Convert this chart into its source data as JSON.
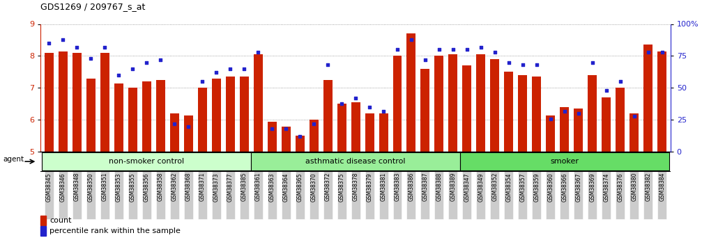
{
  "title": "GDS1269 / 209767_s_at",
  "categories": [
    "GSM38345",
    "GSM38346",
    "GSM38348",
    "GSM38350",
    "GSM38351",
    "GSM38353",
    "GSM38355",
    "GSM38356",
    "GSM38358",
    "GSM38362",
    "GSM38368",
    "GSM38371",
    "GSM38373",
    "GSM38377",
    "GSM38385",
    "GSM38361",
    "GSM38363",
    "GSM38364",
    "GSM38365",
    "GSM38370",
    "GSM38372",
    "GSM38375",
    "GSM38378",
    "GSM38379",
    "GSM38381",
    "GSM38383",
    "GSM38386",
    "GSM38387",
    "GSM38388",
    "GSM38389",
    "GSM38347",
    "GSM38349",
    "GSM38352",
    "GSM38354",
    "GSM38357",
    "GSM38359",
    "GSM38360",
    "GSM38366",
    "GSM38367",
    "GSM38369",
    "GSM38374",
    "GSM38376",
    "GSM38380",
    "GSM38382",
    "GSM38384"
  ],
  "bar_values": [
    8.1,
    8.15,
    8.1,
    7.3,
    8.1,
    7.15,
    7.0,
    7.2,
    7.25,
    6.2,
    6.15,
    7.0,
    7.3,
    7.35,
    7.35,
    8.05,
    5.95,
    5.8,
    5.5,
    6.0,
    7.25,
    6.5,
    6.55,
    6.2,
    6.2,
    8.0,
    8.7,
    7.6,
    8.0,
    8.05,
    7.7,
    8.05,
    7.9,
    7.5,
    7.4,
    7.35,
    6.15,
    6.4,
    6.35,
    7.4,
    6.7,
    7.0,
    6.2,
    8.35,
    8.15
  ],
  "dot_values": [
    85,
    88,
    82,
    73,
    82,
    60,
    65,
    70,
    72,
    22,
    20,
    55,
    62,
    65,
    65,
    78,
    18,
    18,
    12,
    22,
    68,
    38,
    42,
    35,
    32,
    80,
    88,
    72,
    80,
    80,
    80,
    82,
    78,
    70,
    68,
    68,
    26,
    32,
    30,
    70,
    48,
    55,
    28,
    78,
    78
  ],
  "group_labels": [
    "non-smoker control",
    "asthmatic disease control",
    "smoker"
  ],
  "group_sizes": [
    15,
    15,
    15
  ],
  "group_colors": [
    "#ccffcc",
    "#99ee99",
    "#66dd66"
  ],
  "ylim_left": [
    5,
    9
  ],
  "ylim_right": [
    0,
    100
  ],
  "yticks_left": [
    5,
    6,
    7,
    8,
    9
  ],
  "yticks_right": [
    0,
    25,
    50,
    75,
    100
  ],
  "yticklabels_right": [
    "0",
    "25",
    "50",
    "75",
    "100%"
  ],
  "bar_color": "#cc2200",
  "dot_color": "#2222cc",
  "grid_color": "#888888",
  "xticklabel_bg": "#cccccc",
  "title_fontsize": 9,
  "bar_width": 0.65
}
